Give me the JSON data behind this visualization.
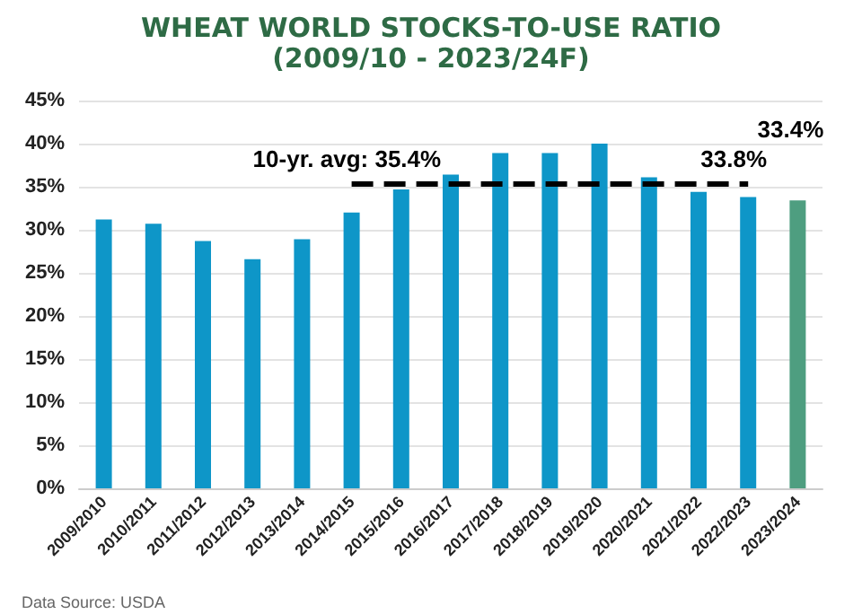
{
  "chart_data": {
    "type": "bar",
    "title": "WHEAT WORLD STOCKS-TO-USE RATIO\n(2009/10 - 2023/24F)",
    "categories": [
      "2009/2010",
      "2010/2011",
      "2011/2012",
      "2012/2013",
      "2013/2014",
      "2014/2015",
      "2015/2016",
      "2016/2017",
      "2017/2018",
      "2018/2019",
      "2019/2020",
      "2020/2021",
      "2021/2022",
      "2022/2023",
      "2023/2024"
    ],
    "values": [
      31.2,
      30.7,
      28.7,
      26.6,
      28.9,
      32.0,
      34.7,
      36.4,
      38.9,
      38.9,
      40.0,
      36.1,
      34.4,
      33.8,
      33.4
    ],
    "colors": [
      "#0e96c8",
      "#0e96c8",
      "#0e96c8",
      "#0e96c8",
      "#0e96c8",
      "#0e96c8",
      "#0e96c8",
      "#0e96c8",
      "#0e96c8",
      "#0e96c8",
      "#0e96c8",
      "#0e96c8",
      "#0e96c8",
      "#0e96c8",
      "#4e9e80"
    ],
    "value_labels": [
      null,
      null,
      null,
      null,
      null,
      null,
      null,
      null,
      null,
      null,
      null,
      null,
      null,
      "33.8%",
      "33.4%"
    ],
    "ylim": [
      0,
      45
    ],
    "yticks": [
      {
        "value": 0,
        "label": "0%"
      },
      {
        "value": 5,
        "label": "5%"
      },
      {
        "value": 10,
        "label": "10%"
      },
      {
        "value": 15,
        "label": "15%"
      },
      {
        "value": 20,
        "label": "20%"
      },
      {
        "value": 25,
        "label": "25%"
      },
      {
        "value": 30,
        "label": "30%"
      },
      {
        "value": 35,
        "label": "35%"
      },
      {
        "value": 40,
        "label": "40%"
      },
      {
        "value": 45,
        "label": "45%"
      }
    ],
    "ref_lines": [
      {
        "axis": "y",
        "value": 35.4,
        "label": "10-yr. avg: 35.4%",
        "color": "#000000",
        "line_style": "dashed"
      }
    ],
    "annotations": [
      "Data Source: USDA"
    ],
    "grid": "y"
  }
}
